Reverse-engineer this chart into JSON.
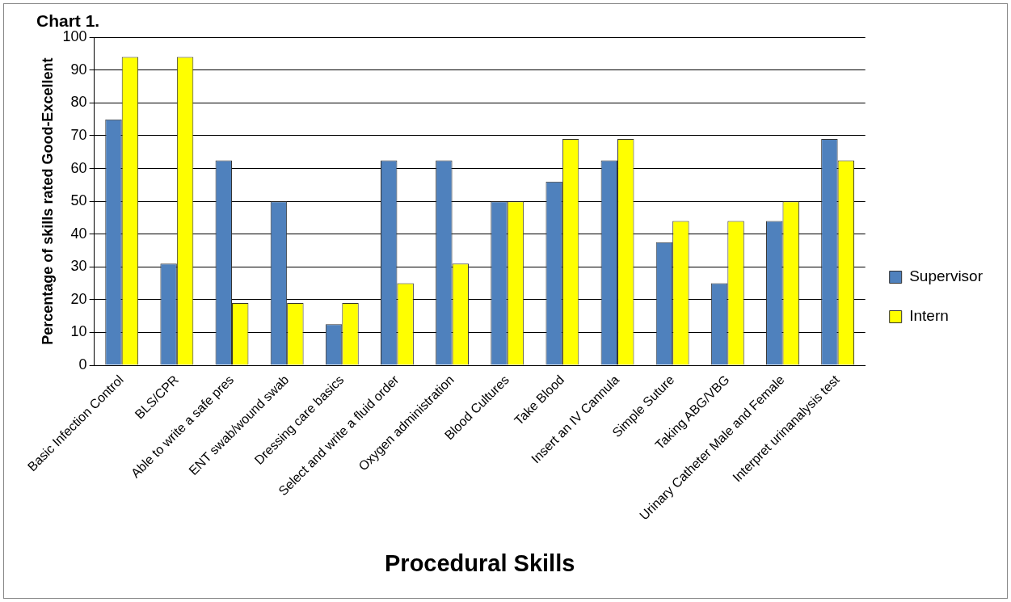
{
  "chart_data": {
    "type": "bar",
    "title": "Chart 1.",
    "xlabel": "Procedural Skills",
    "ylabel": "Percentage of skills rated Good-Excellent",
    "categories": [
      "Basic Infection Control",
      "BLS/CPR",
      "Able to write a safe pres",
      "ENT swab/wound swab",
      "Dressing care basics",
      "Select and write a fluid order",
      "Oxygen administration",
      "Blood Cultures",
      "Take Blood",
      "Insert an IV Cannula",
      "Simple Suture",
      "Taking ABG/VBG",
      "Urinary Catheter Male and Female",
      "Interpret urinanalysis test"
    ],
    "series": [
      {
        "name": "Supervisor",
        "color": "#4f81bd",
        "values": [
          75,
          31,
          62.5,
          50,
          12.5,
          62.5,
          62.5,
          50,
          56,
          62.5,
          37.5,
          25,
          44,
          69
        ]
      },
      {
        "name": "Intern",
        "color": "#ffff00",
        "values": [
          94,
          94,
          19,
          19,
          19,
          25,
          31,
          50,
          69,
          69,
          44,
          44,
          50,
          62.5
        ]
      }
    ],
    "ylim": [
      0,
      100
    ],
    "yticks": [
      0,
      10,
      20,
      30,
      40,
      50,
      60,
      70,
      80,
      90,
      100
    ],
    "grid": "y",
    "legend": "right"
  }
}
